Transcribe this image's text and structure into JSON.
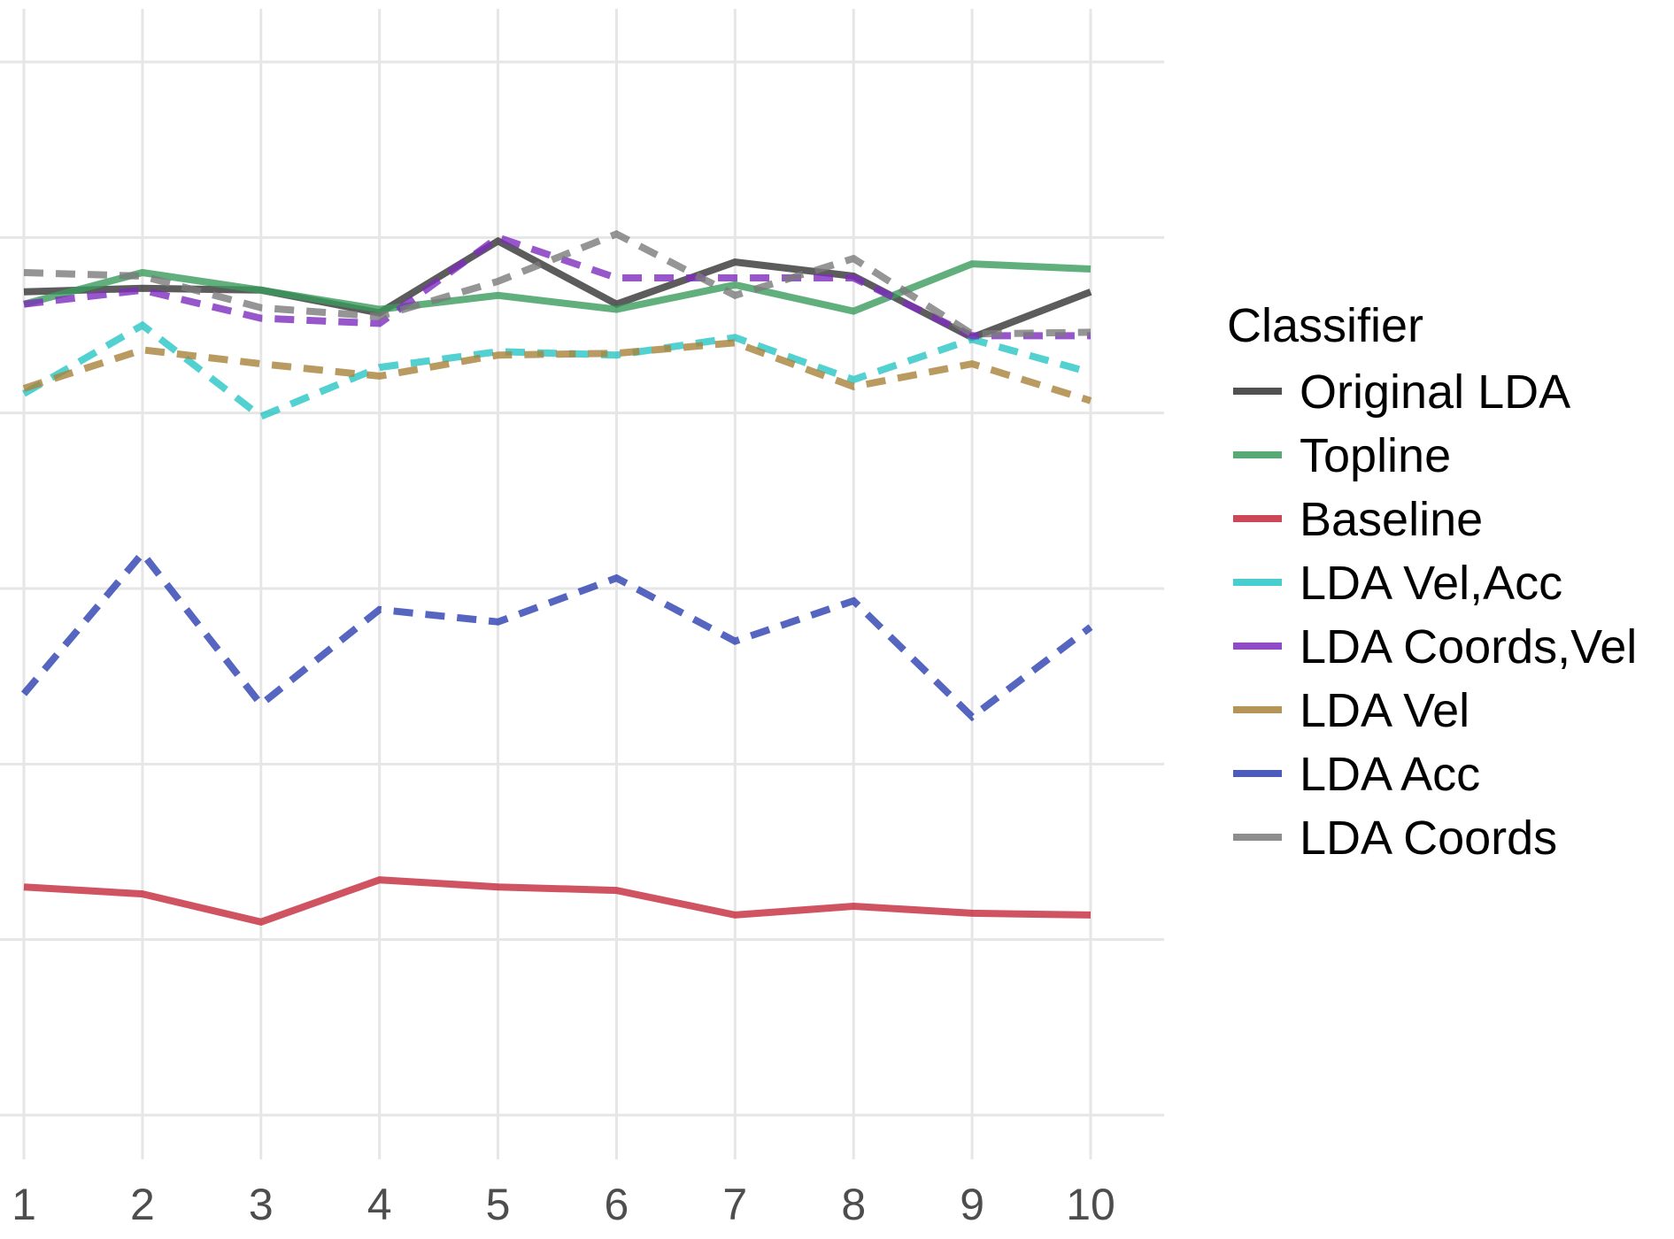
{
  "chart_data": {
    "type": "line",
    "title": "",
    "xlabel": "",
    "ylabel": "",
    "x": [
      1,
      2,
      3,
      4,
      5,
      6,
      7,
      8,
      9,
      10
    ],
    "x_tick_labels": [
      "1",
      "2",
      "3",
      "4",
      "5",
      "6",
      "7",
      "8",
      "9",
      "10"
    ],
    "xlim": [
      1,
      10
    ],
    "ylim": [
      0,
      6
    ],
    "y_gridlines": [
      0,
      1,
      2,
      3,
      4,
      5,
      6
    ],
    "y_tick_labels_visible": false,
    "grid": true,
    "legend_title": "Classifier",
    "legend_position": "right",
    "series": [
      {
        "name": "Original LDA",
        "color": "#333333",
        "dash": "solid",
        "values": [
          4.69,
          4.71,
          4.7,
          4.57,
          4.98,
          4.62,
          4.86,
          4.78,
          4.43,
          4.69
        ]
      },
      {
        "name": "Topline",
        "color": "#3a9b5c",
        "dash": "solid",
        "values": [
          4.62,
          4.8,
          4.7,
          4.59,
          4.67,
          4.59,
          4.73,
          4.58,
          4.85,
          4.82
        ]
      },
      {
        "name": "Baseline",
        "color": "#c4283a",
        "dash": "solid",
        "values": [
          1.3,
          1.26,
          1.1,
          1.34,
          1.3,
          1.28,
          1.14,
          1.19,
          1.15,
          1.14
        ]
      },
      {
        "name": "LDA Vel,Acc",
        "color": "#28c6c6",
        "dash": "dashed",
        "values": [
          4.11,
          4.5,
          3.98,
          4.26,
          4.35,
          4.33,
          4.43,
          4.19,
          4.42,
          4.23
        ]
      },
      {
        "name": "LDA Coords,Vel",
        "color": "#7d2dbd",
        "dash": "dashed",
        "values": [
          4.62,
          4.7,
          4.54,
          4.51,
          5.0,
          4.77,
          4.77,
          4.77,
          4.44,
          4.44
        ]
      },
      {
        "name": "LDA Vel",
        "color": "#a7823a",
        "dash": "dashed",
        "values": [
          4.14,
          4.36,
          4.28,
          4.21,
          4.33,
          4.34,
          4.4,
          4.15,
          4.28,
          4.07
        ]
      },
      {
        "name": "LDA Acc",
        "color": "#2b3fb0",
        "dash": "dashed",
        "values": [
          2.4,
          3.2,
          2.34,
          2.88,
          2.81,
          3.06,
          2.7,
          2.93,
          2.27,
          2.78
        ]
      },
      {
        "name": "LDA Coords",
        "color": "#7a7a7a",
        "dash": "dashed",
        "values": [
          4.8,
          4.78,
          4.6,
          4.55,
          4.75,
          5.02,
          4.67,
          4.88,
          4.45,
          4.46
        ]
      }
    ]
  }
}
